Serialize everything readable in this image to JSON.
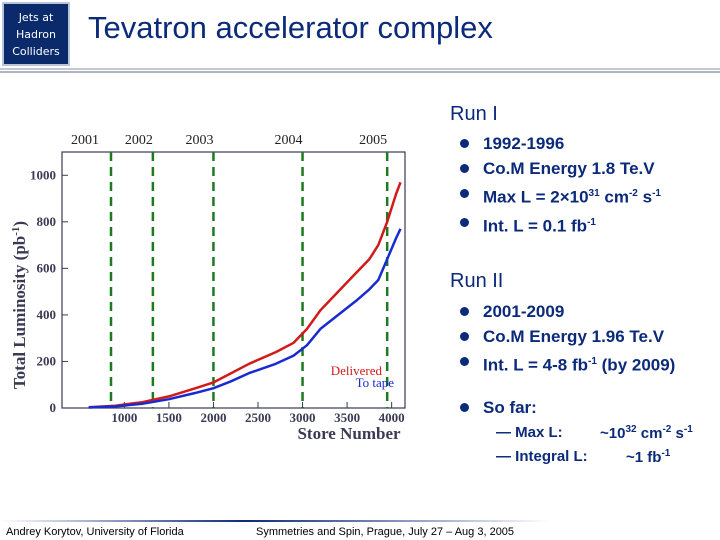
{
  "logo": {
    "line1": "Jets at",
    "line2": "Hadron",
    "line3": "Colliders"
  },
  "title": "Tevatron accelerator complex",
  "run1": {
    "heading": "Run I",
    "bullets": {
      "years": "1992-1996",
      "energy": "Co.M Energy 1.8 Te.V",
      "lumi_prefix": "Max L = 2×10",
      "lumi_exp": "31",
      "lumi_unit1": " cm",
      "lumi_exp2": "-2",
      "lumi_unit2": " s",
      "lumi_exp3": "-1",
      "int_prefix": "Int. L = 0.1 fb",
      "int_exp": "-1"
    }
  },
  "run2": {
    "heading": "Run II",
    "bullets": {
      "years": "2001-2009",
      "energy": "Co.M Energy 1.96 Te.V",
      "int_prefix": "Int. L = 4-8 fb",
      "int_exp": "-1",
      "int_suffix": " (by 2009)"
    },
    "so_far": "So far:",
    "max_label": "— Max L:",
    "max_value": "~10",
    "max_exp": "32",
    "max_unit1": " cm",
    "max_exp2": "-2",
    "max_unit2": " s",
    "max_exp3": "-1",
    "int_label": "— Integral L:",
    "int_value": "~1 fb",
    "int_exp": "-1"
  },
  "footer": {
    "author": "Andrey Korytov, University of Florida",
    "conference": "Symmetries and Spin, Prague, July 27 – Aug 3, 2005"
  },
  "chart_data": {
    "type": "line",
    "xlabel": "Store Number",
    "ylabel": "Total Luminosity (pb",
    "ylabel_exp": "-1",
    "ylabel_end": ")",
    "xlim": [
      300,
      4150
    ],
    "ylim": [
      0,
      1100
    ],
    "x_ticks": [
      1000,
      1500,
      2000,
      2500,
      3000,
      3500,
      4000
    ],
    "y_ticks": [
      0,
      200,
      400,
      600,
      800,
      1000
    ],
    "year_markers": [
      {
        "label": "2001",
        "store": 850
      },
      {
        "label": "2002",
        "store": 1320
      },
      {
        "label": "2003",
        "store": 2000
      },
      {
        "label": "2004",
        "store": 3000
      },
      {
        "label": "2005",
        "store": 3950
      }
    ],
    "series": [
      {
        "name": "Delivered",
        "color": "#d11a1a",
        "x": [
          600,
          900,
          1200,
          1500,
          1800,
          2000,
          2200,
          2400,
          2700,
          2900,
          3050,
          3200,
          3400,
          3600,
          3750,
          3850,
          3950,
          4050,
          4100
        ],
        "y": [
          3,
          10,
          25,
          50,
          85,
          110,
          150,
          190,
          240,
          280,
          340,
          420,
          500,
          580,
          640,
          700,
          800,
          920,
          970
        ]
      },
      {
        "name": "To tape",
        "color": "#1a2ad1",
        "x": [
          600,
          900,
          1200,
          1500,
          1800,
          2000,
          2200,
          2400,
          2700,
          2900,
          3050,
          3200,
          3400,
          3600,
          3750,
          3850,
          3950,
          4050,
          4100
        ],
        "y": [
          2,
          7,
          18,
          38,
          65,
          85,
          115,
          150,
          190,
          225,
          270,
          340,
          400,
          460,
          510,
          550,
          640,
          730,
          770
        ]
      }
    ]
  }
}
